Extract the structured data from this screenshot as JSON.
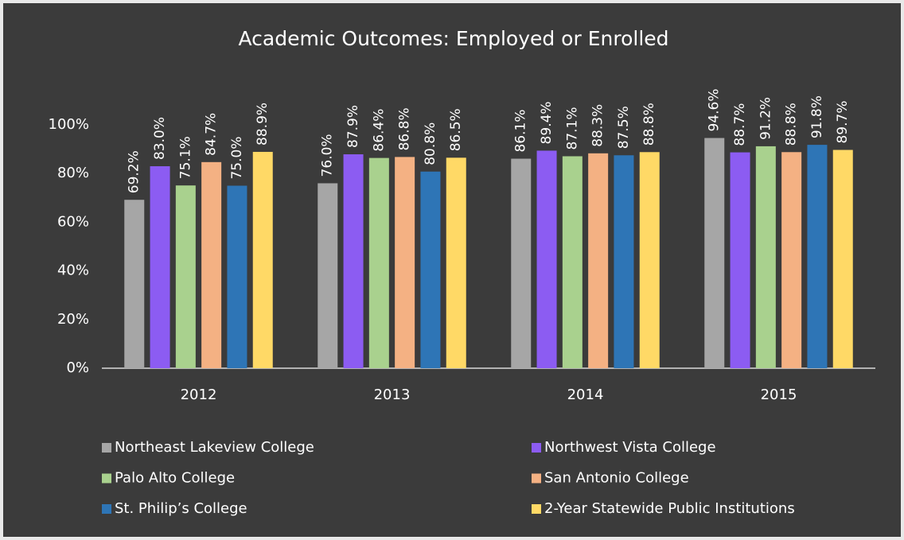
{
  "chart_data": {
    "type": "bar",
    "title": "Academic Outcomes: Employed or Enrolled",
    "categories": [
      "2012",
      "2013",
      "2014",
      "2015"
    ],
    "series": [
      {
        "name": "Northeast Lakeview College",
        "color": "#a6a6a6",
        "values": [
          69.2,
          76.0,
          86.1,
          94.6
        ],
        "value_labels": [
          "69.2%",
          "76.0%",
          "86.1%",
          "94.6%"
        ]
      },
      {
        "name": "Northwest Vista College",
        "color": "#8c5cf2",
        "values": [
          83.0,
          87.9,
          89.4,
          88.7
        ],
        "value_labels": [
          "83.0%",
          "87.9%",
          "89.4%",
          "88.7%"
        ]
      },
      {
        "name": "Palo Alto College",
        "color": "#a9d18e",
        "values": [
          75.1,
          86.4,
          87.1,
          91.2
        ],
        "value_labels": [
          "75.1%",
          "86.4%",
          "87.1%",
          "91.2%"
        ]
      },
      {
        "name": "San Antonio College",
        "color": "#f4b183",
        "values": [
          84.7,
          86.8,
          88.3,
          88.8
        ],
        "value_labels": [
          "84.7%",
          "86.8%",
          "88.3%",
          "88.8%"
        ]
      },
      {
        "name": "St. Philip’s College",
        "color": "#2e75b6",
        "values": [
          75.0,
          80.8,
          87.5,
          91.8
        ],
        "value_labels": [
          "75.0%",
          "80.8%",
          "87.5%",
          "91.8%"
        ]
      },
      {
        "name": "2-Year Statewide Public Institutions",
        "color": "#ffd966",
        "values": [
          88.9,
          86.5,
          88.8,
          89.7
        ],
        "value_labels": [
          "88.9%",
          "86.5%",
          "88.8%",
          "89.7%"
        ]
      }
    ],
    "ylim": [
      0,
      100
    ],
    "yticks": [
      {
        "value": 0,
        "label": "0%"
      },
      {
        "value": 20,
        "label": "20%"
      },
      {
        "value": 40,
        "label": "40%"
      },
      {
        "value": 60,
        "label": "60%"
      },
      {
        "value": 80,
        "label": "80%"
      },
      {
        "value": 100,
        "label": "100%"
      }
    ],
    "grid": false
  }
}
